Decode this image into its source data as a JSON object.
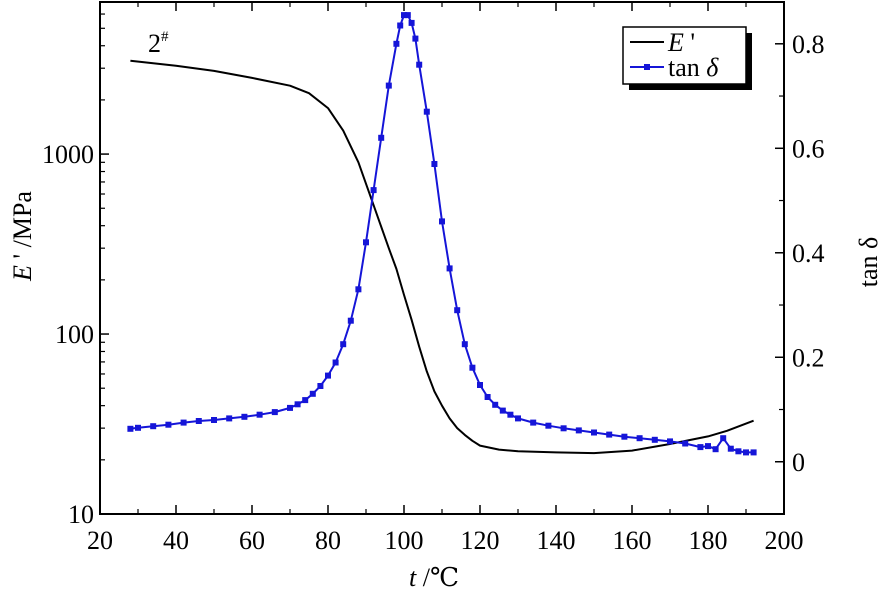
{
  "chart_data": {
    "type": "line",
    "annotation": "2",
    "annotation_sup": "#",
    "x": {
      "label_var": "t",
      "label_sep": " /",
      "label_unit": "℃",
      "range": [
        20,
        200
      ],
      "ticks": [
        20,
        40,
        60,
        80,
        100,
        120,
        140,
        160,
        180,
        200
      ]
    },
    "y_left": {
      "label_var": "E",
      "label_prime": " '",
      "label_unit": " /MPa",
      "scale": "log",
      "range": [
        10,
        7000
      ],
      "ticks": [
        10,
        100,
        1000
      ],
      "tick_labels": [
        "10",
        "100",
        "1000"
      ]
    },
    "y_right": {
      "label": "tan δ",
      "scale": "linear",
      "range": [
        -0.1,
        0.88
      ],
      "ticks": [
        0,
        0.2,
        0.4,
        0.6,
        0.8
      ],
      "tick_labels": [
        "0",
        "0.2",
        "0.4",
        "0.6",
        "0.8"
      ]
    },
    "legend": {
      "placement": "top-right",
      "entries": [
        {
          "label_var": "E",
          "label_prime": " '"
        },
        {
          "label_pre": "tan ",
          "label_var": "δ"
        }
      ]
    },
    "series": [
      {
        "name": "E'",
        "axis": "left",
        "color": "#000000",
        "marker": "none",
        "x": [
          28,
          40,
          50,
          60,
          70,
          75,
          80,
          84,
          88,
          92,
          96,
          98,
          100,
          102,
          104,
          106,
          108,
          110,
          112,
          114,
          116,
          118,
          120,
          125,
          130,
          140,
          150,
          160,
          170,
          180,
          185,
          192
        ],
        "y": [
          3300,
          3100,
          2900,
          2650,
          2400,
          2180,
          1800,
          1350,
          900,
          520,
          300,
          230,
          165,
          120,
          85,
          62,
          48,
          40,
          34,
          30,
          27.5,
          25.5,
          24,
          22.8,
          22.3,
          22,
          21.8,
          22.5,
          24.5,
          27,
          29,
          33
        ]
      },
      {
        "name": "tan δ",
        "axis": "right",
        "color": "#1515d8",
        "marker": "square",
        "x": [
          28,
          30,
          34,
          38,
          42,
          46,
          50,
          54,
          58,
          62,
          66,
          70,
          72,
          74,
          76,
          78,
          80,
          82,
          84,
          86,
          88,
          90,
          92,
          94,
          96,
          98,
          99,
          100,
          101,
          102,
          103,
          104,
          106,
          108,
          110,
          112,
          114,
          116,
          118,
          120,
          122,
          124,
          126,
          128,
          130,
          134,
          138,
          142,
          146,
          150,
          154,
          158,
          162,
          166,
          170,
          174,
          178,
          180,
          182,
          184,
          186,
          188,
          190,
          192
        ],
        "y": [
          0.063,
          0.065,
          0.068,
          0.071,
          0.075,
          0.078,
          0.08,
          0.083,
          0.086,
          0.09,
          0.095,
          0.103,
          0.11,
          0.118,
          0.13,
          0.145,
          0.165,
          0.19,
          0.225,
          0.27,
          0.33,
          0.42,
          0.52,
          0.62,
          0.72,
          0.8,
          0.835,
          0.855,
          0.855,
          0.84,
          0.81,
          0.76,
          0.67,
          0.57,
          0.46,
          0.37,
          0.29,
          0.225,
          0.18,
          0.147,
          0.124,
          0.109,
          0.098,
          0.09,
          0.083,
          0.075,
          0.069,
          0.064,
          0.06,
          0.056,
          0.052,
          0.048,
          0.045,
          0.042,
          0.039,
          0.035,
          0.028,
          0.03,
          0.024,
          0.045,
          0.025,
          0.02,
          0.018,
          0.018
        ]
      }
    ]
  }
}
